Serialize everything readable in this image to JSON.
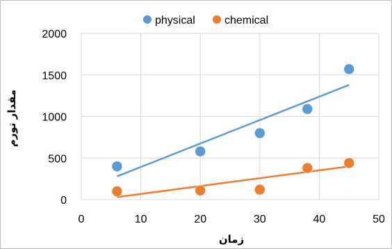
{
  "chart_data": {
    "type": "scatter",
    "title": "",
    "xlabel": "زمان",
    "ylabel": "مقدار تورم",
    "xlim": [
      0,
      50
    ],
    "ylim": [
      0,
      2000
    ],
    "x_ticks": [
      "0",
      "10",
      "20",
      "30",
      "40",
      "50"
    ],
    "y_ticks": [
      "0",
      "500",
      "1000",
      "1500",
      "2000"
    ],
    "grid": true,
    "legend_position": "top",
    "series": [
      {
        "name": "physical",
        "color": "#5b9bd5",
        "x": [
          6,
          20,
          30,
          38,
          45
        ],
        "y": [
          400,
          580,
          800,
          1090,
          1570
        ],
        "trendline": {
          "x": [
            6,
            45
          ],
          "y": [
            280,
            1380
          ]
        }
      },
      {
        "name": "chemical",
        "color": "#ed7d31",
        "x": [
          6,
          20,
          30,
          38,
          45
        ],
        "y": [
          100,
          110,
          120,
          380,
          440
        ],
        "trendline": {
          "x": [
            6,
            45
          ],
          "y": [
            30,
            400
          ]
        }
      }
    ]
  }
}
